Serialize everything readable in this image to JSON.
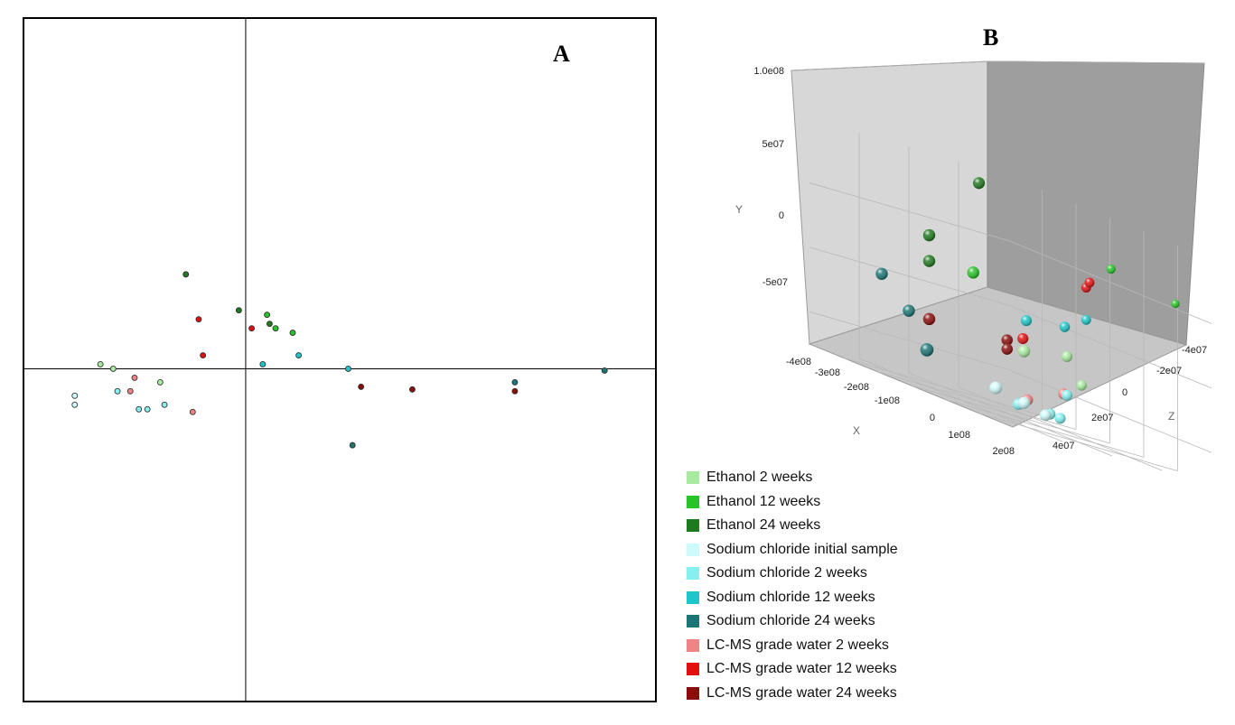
{
  "chart_data": [
    {
      "panel": "A",
      "type": "scatter",
      "title": "",
      "xlabel": "",
      "ylabel": "",
      "xlim": [
        -2.6,
        4.8
      ],
      "ylim": [
        -3.7,
        3.9
      ],
      "grid": false,
      "axes_lines_at_zero": true,
      "points": [
        {
          "group": 0,
          "x": -1.7,
          "y": 0.05
        },
        {
          "group": 0,
          "x": -1.55,
          "y": 0.0
        },
        {
          "group": 0,
          "x": -1.0,
          "y": -0.15
        },
        {
          "group": 1,
          "x": 0.25,
          "y": 0.6
        },
        {
          "group": 1,
          "x": 0.35,
          "y": 0.45
        },
        {
          "group": 1,
          "x": 0.55,
          "y": 0.4
        },
        {
          "group": 2,
          "x": -0.7,
          "y": 1.05
        },
        {
          "group": 2,
          "x": -0.08,
          "y": 0.65
        },
        {
          "group": 2,
          "x": 0.28,
          "y": 0.5
        },
        {
          "group": 3,
          "x": -2.0,
          "y": -0.3
        },
        {
          "group": 3,
          "x": -2.0,
          "y": -0.4
        },
        {
          "group": 4,
          "x": -1.5,
          "y": -0.25
        },
        {
          "group": 4,
          "x": -1.25,
          "y": -0.45
        },
        {
          "group": 4,
          "x": -1.15,
          "y": -0.45
        },
        {
          "group": 4,
          "x": -0.95,
          "y": -0.4
        },
        {
          "group": 5,
          "x": 0.2,
          "y": 0.05
        },
        {
          "group": 5,
          "x": 0.62,
          "y": 0.15
        },
        {
          "group": 5,
          "x": 1.2,
          "y": 0.0
        },
        {
          "group": 6,
          "x": 1.25,
          "y": -0.85
        },
        {
          "group": 6,
          "x": 3.15,
          "y": -0.15
        },
        {
          "group": 6,
          "x": 4.2,
          "y": -0.02
        },
        {
          "group": 7,
          "x": -1.3,
          "y": -0.1
        },
        {
          "group": 7,
          "x": -1.35,
          "y": -0.25
        },
        {
          "group": 7,
          "x": -0.62,
          "y": -0.48
        },
        {
          "group": 8,
          "x": -0.55,
          "y": 0.55
        },
        {
          "group": 8,
          "x": 0.07,
          "y": 0.45
        },
        {
          "group": 8,
          "x": -0.5,
          "y": 0.15
        },
        {
          "group": 9,
          "x": 1.35,
          "y": -0.2
        },
        {
          "group": 9,
          "x": 1.95,
          "y": -0.23
        },
        {
          "group": 9,
          "x": 3.15,
          "y": -0.25
        }
      ],
      "label": "A"
    },
    {
      "panel": "B",
      "type": "scatter3d",
      "label": "B",
      "xlabel": "X",
      "ylabel": "Y",
      "zlabel": "Z",
      "x_ticks": [
        "-4e08",
        "-3e08",
        "-2e08",
        "-1e08",
        "0",
        "1e08",
        "2e08"
      ],
      "y_ticks": [
        "1.0e08",
        "5e07",
        "0",
        "-5e07"
      ],
      "z_ticks": [
        "-4e07",
        "-2e07",
        "0",
        "2e07",
        "4e07"
      ],
      "points": [
        {
          "group": 0,
          "x": 140000000.0,
          "y": -10000000.0,
          "z": 10000000.0
        },
        {
          "group": 0,
          "x": 160000000.0,
          "y": -15000000.0,
          "z": 30000000.0
        },
        {
          "group": 0,
          "x": 110000000.0,
          "y": -30000000.0,
          "z": 0.0
        },
        {
          "group": 1,
          "x": 50000000.0,
          "y": 65000000.0,
          "z": -20000000.0
        },
        {
          "group": 1,
          "x": 130000000.0,
          "y": 55000000.0,
          "z": -35000000.0
        },
        {
          "group": 1,
          "x": 10000000.0,
          "y": 30000000.0,
          "z": 30000000.0
        },
        {
          "group": 2,
          "x": -10000000.0,
          "y": 100000000.0,
          "z": 25000000.0
        },
        {
          "group": 2,
          "x": -120000000.0,
          "y": 45000000.0,
          "z": 30000000.0
        },
        {
          "group": 2,
          "x": -120000000.0,
          "y": 25000000.0,
          "z": 30000000.0
        },
        {
          "group": 3,
          "x": 150000000.0,
          "y": -50000000.0,
          "z": 40000000.0
        },
        {
          "group": 3,
          "x": 160000000.0,
          "y": -55000000.0,
          "z": 30000000.0
        },
        {
          "group": 3,
          "x": 150000000.0,
          "y": -60000000.0,
          "z": 20000000.0
        },
        {
          "group": 4,
          "x": 120000000.0,
          "y": -60000000.0,
          "z": 10000000.0
        },
        {
          "group": 4,
          "x": 90000000.0,
          "y": -60000000.0,
          "z": 10000000.0
        },
        {
          "group": 4,
          "x": 70000000.0,
          "y": -60000000.0,
          "z": 20000000.0
        },
        {
          "group": 4,
          "x": 140000000.0,
          "y": -40000000.0,
          "z": 10000000.0
        },
        {
          "group": 5,
          "x": 50000000.0,
          "y": 20000000.0,
          "z": -10000000.0
        },
        {
          "group": 5,
          "x": 60000000.0,
          "y": 10000000.0,
          "z": 0.0
        },
        {
          "group": 5,
          "x": 20000000.0,
          "y": 5000000.0,
          "z": 10000000.0
        },
        {
          "group": 6,
          "x": -260000000.0,
          "y": 0.0,
          "z": 30000000.0
        },
        {
          "group": 6,
          "x": -180000000.0,
          "y": -20000000.0,
          "z": 30000000.0
        },
        {
          "group": 6,
          "x": 20000000.0,
          "y": -40000000.0,
          "z": 50000000.0
        },
        {
          "group": 7,
          "x": 130000000.0,
          "y": -40000000.0,
          "z": 10000000.0
        },
        {
          "group": 7,
          "x": 60000000.0,
          "y": -55000000.0,
          "z": 15000000.0
        },
        {
          "group": 8,
          "x": 50000000.0,
          "y": 45000000.0,
          "z": -10000000.0
        },
        {
          "group": 8,
          "x": 60000000.0,
          "y": 50000000.0,
          "z": -10000000.0
        },
        {
          "group": 8,
          "x": 10000000.0,
          "y": -10000000.0,
          "z": 10000000.0
        },
        {
          "group": 9,
          "x": 0.0,
          "y": -15000000.0,
          "z": 15000000.0
        },
        {
          "group": 9,
          "x": 0.0,
          "y": -22000000.0,
          "z": 15000000.0
        },
        {
          "group": 9,
          "x": -120000000.0,
          "y": -20000000.0,
          "z": 30000000.0
        }
      ]
    }
  ],
  "legend": [
    {
      "label": "Ethanol 2 weeks",
      "color": "#a8eba0"
    },
    {
      "label": "Ethanol 12 weeks",
      "color": "#27c427"
    },
    {
      "label": "Ethanol 24 weeks",
      "color": "#1f7a1f"
    },
    {
      "label": "Sodium chloride initial sample",
      "color": "#cffafa"
    },
    {
      "label": "Sodium chloride 2 weeks",
      "color": "#86f0f0"
    },
    {
      "label": "Sodium chloride 12 weeks",
      "color": "#1fc6c9"
    },
    {
      "label": "Sodium chloride 24 weeks",
      "color": "#1c7575"
    },
    {
      "label": "LC-MS grade water 2 weeks",
      "color": "#f08383"
    },
    {
      "label": "LC-MS grade water 12 weeks",
      "color": "#e01010"
    },
    {
      "label": "LC-MS grade water 24 weeks",
      "color": "#8c0c0c"
    }
  ]
}
